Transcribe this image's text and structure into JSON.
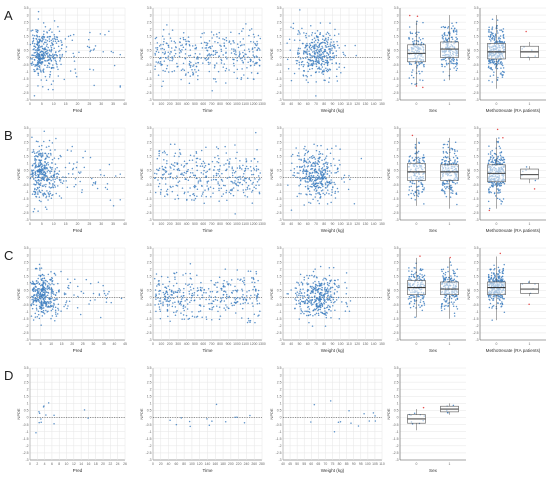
{
  "figure": {
    "row_labels": [
      "A",
      "B",
      "C",
      "D"
    ],
    "y_label": "NPDE",
    "colors": {
      "point": "#3f7fbf",
      "grid": "#e6e6e6",
      "axis": "#555555",
      "outlier": "#e03030",
      "box_edge": "#555555"
    }
  },
  "chart_data": [
    {
      "row": "A",
      "type": "scatter",
      "xlabel": "Pred",
      "x_ticks": [
        "0",
        "5",
        "10",
        "15",
        "20",
        "25",
        "30",
        "35",
        "40"
      ],
      "xlim": [
        0,
        40
      ],
      "y_ticks": [
        "-3",
        "-2.5",
        "-2",
        "-1.5",
        "-1",
        "-0.5",
        "0",
        "0.5",
        "1",
        "1.5",
        "2",
        "2.5",
        "3",
        "3.5"
      ],
      "ylim": [
        -3,
        3.5
      ],
      "ref_line": 0,
      "points": {
        "n": 380,
        "x_dist": "right-skew",
        "x_center": 6,
        "x_spread": 6,
        "y_spread": 0.9,
        "y_center": 0.3,
        "x_min": 0,
        "x_max": 38
      }
    },
    {
      "row": "A",
      "type": "scatter",
      "xlabel": "Time",
      "x_ticks": [
        "0",
        "100",
        "200",
        "300",
        "400",
        "500",
        "600",
        "700",
        "800",
        "900",
        "1000",
        "1100",
        "1200",
        "1300"
      ],
      "xlim": [
        0,
        1300
      ],
      "y_ticks": [
        "-3",
        "-2.5",
        "-2",
        "-1.5",
        "-1",
        "-0.5",
        "0",
        "0.5",
        "1",
        "1.5",
        "2",
        "2.5",
        "3",
        "3.5"
      ],
      "ylim": [
        -3,
        3.5
      ],
      "ref_line": 0,
      "points": {
        "n": 360,
        "x_dist": "uniform",
        "x_min": 20,
        "x_max": 1280,
        "y_spread": 0.9,
        "y_center": 0.2
      }
    },
    {
      "row": "A",
      "type": "scatter",
      "xlabel": "Weight (kg)",
      "x_ticks": [
        "30",
        "40",
        "50",
        "60",
        "70",
        "80",
        "90",
        "100",
        "110",
        "120",
        "130",
        "140",
        "150"
      ],
      "xlim": [
        30,
        150
      ],
      "y_ticks": [
        "-3",
        "-2.5",
        "-2",
        "-1.5",
        "-1",
        "-0.5",
        "0",
        "0.5",
        "1",
        "1.5",
        "2",
        "2.5",
        "3",
        "3.5"
      ],
      "ylim": [
        -3,
        3.5
      ],
      "ref_line": 0,
      "points": {
        "n": 360,
        "x_dist": "normal",
        "x_center": 72,
        "x_spread": 14,
        "x_min": 35,
        "x_max": 145,
        "y_spread": 0.9,
        "y_center": 0.2
      }
    },
    {
      "row": "A",
      "type": "box",
      "xlabel": "Sex",
      "categories": [
        "0",
        "1"
      ],
      "y_ticks": [
        "-3",
        "-2.5",
        "-2",
        "-1.5",
        "-1",
        "-0.5",
        "0",
        "0.5",
        "1",
        "1.5",
        "2",
        "2.5",
        "3",
        "3.5"
      ],
      "ylim": [
        -3,
        3.5
      ],
      "boxes": [
        {
          "q1": -0.3,
          "median": 0.3,
          "q3": 0.9,
          "low": -2.0,
          "high": 2.6,
          "n": 150
        },
        {
          "q1": 0.0,
          "median": 0.6,
          "q3": 1.1,
          "low": -1.6,
          "high": 3.0,
          "n": 190
        }
      ]
    },
    {
      "row": "A",
      "type": "box",
      "xlabel": "Methotrexate (RA patients)",
      "categories": [
        "0",
        "1"
      ],
      "y_ticks": [
        "-3",
        "-2.5",
        "-2",
        "-1.5",
        "-1",
        "-0.5",
        "0",
        "0.5",
        "1",
        "1.5",
        "2",
        "2.5",
        "3",
        "3.5"
      ],
      "ylim": [
        -3,
        3.5
      ],
      "boxes": [
        {
          "q1": -0.1,
          "median": 0.4,
          "q3": 1.0,
          "low": -2.2,
          "high": 3.0,
          "n": 280
        },
        {
          "q1": 0.0,
          "median": 0.4,
          "q3": 0.8,
          "low": -0.2,
          "high": 1.1,
          "n": 6
        }
      ]
    },
    {
      "row": "B",
      "type": "scatter",
      "xlabel": "Pred",
      "x_ticks": [
        "0",
        "5",
        "10",
        "15",
        "20",
        "25",
        "30",
        "35",
        "40"
      ],
      "xlim": [
        0,
        40
      ],
      "y_ticks": [
        "-3",
        "-2.5",
        "-2",
        "-1.5",
        "-1",
        "-0.5",
        "0",
        "0.5",
        "1",
        "1.5",
        "2",
        "2.5",
        "3",
        "3.5"
      ],
      "ylim": [
        -3,
        3.5
      ],
      "ref_line": 0,
      "points": {
        "n": 380,
        "x_dist": "right-skew",
        "x_center": 6,
        "x_spread": 6,
        "y_spread": 0.9,
        "y_center": 0.3,
        "x_min": 0,
        "x_max": 38
      }
    },
    {
      "row": "B",
      "type": "scatter",
      "xlabel": "Time",
      "x_ticks": [
        "0",
        "100",
        "200",
        "300",
        "400",
        "500",
        "600",
        "700",
        "800",
        "900",
        "1000",
        "1100",
        "1200",
        "1300"
      ],
      "xlim": [
        0,
        1300
      ],
      "y_ticks": [
        "-3",
        "-2.5",
        "-2",
        "-1.5",
        "-1",
        "-0.5",
        "0",
        "0.5",
        "1",
        "1.5",
        "2",
        "2.5",
        "3",
        "3.5"
      ],
      "ylim": [
        -3,
        3.5
      ],
      "ref_line": 0,
      "points": {
        "n": 360,
        "x_dist": "uniform",
        "x_min": 20,
        "x_max": 1280,
        "y_spread": 0.9,
        "y_center": 0.2
      }
    },
    {
      "row": "B",
      "type": "scatter",
      "xlabel": "Weight (kg)",
      "x_ticks": [
        "30",
        "40",
        "50",
        "60",
        "70",
        "80",
        "90",
        "100",
        "110",
        "120",
        "130",
        "140",
        "150"
      ],
      "xlim": [
        30,
        150
      ],
      "y_ticks": [
        "-3",
        "-2.5",
        "-2",
        "-1.5",
        "-1",
        "-0.5",
        "0",
        "0.5",
        "1",
        "1.5",
        "2",
        "2.5",
        "3",
        "3.5"
      ],
      "ylim": [
        -3,
        3.5
      ],
      "ref_line": 0,
      "points": {
        "n": 360,
        "x_dist": "normal",
        "x_center": 72,
        "x_spread": 14,
        "x_min": 35,
        "x_max": 145,
        "y_spread": 0.9,
        "y_center": 0.2
      }
    },
    {
      "row": "B",
      "type": "box",
      "xlabel": "Sex",
      "categories": [
        "0",
        "1"
      ],
      "y_ticks": [
        "-3",
        "-2.5",
        "-2",
        "-1.5",
        "-1",
        "-0.5",
        "0",
        "0.5",
        "1",
        "1.5",
        "2",
        "2.5",
        "3",
        "3.5"
      ],
      "ylim": [
        -3,
        3.5
      ],
      "boxes": [
        {
          "q1": -0.2,
          "median": 0.4,
          "q3": 1.0,
          "low": -2.0,
          "high": 2.8,
          "n": 150
        },
        {
          "q1": -0.2,
          "median": 0.4,
          "q3": 0.9,
          "low": -2.2,
          "high": 2.8,
          "n": 190
        }
      ]
    },
    {
      "row": "B",
      "type": "box",
      "xlabel": "Methotrexate (RA patients)",
      "categories": [
        "0",
        "1"
      ],
      "y_ticks": [
        "-3",
        "-2.5",
        "-2",
        "-1.5",
        "-1",
        "-0.5",
        "0",
        "0.5",
        "1",
        "1.5",
        "2",
        "2.5",
        "3",
        "3.5"
      ],
      "ylim": [
        -3,
        3.5
      ],
      "boxes": [
        {
          "q1": -0.3,
          "median": 0.3,
          "q3": 0.9,
          "low": -2.2,
          "high": 2.8,
          "n": 280
        },
        {
          "q1": -0.1,
          "median": 0.2,
          "q3": 0.6,
          "low": -0.4,
          "high": 0.8,
          "n": 6
        }
      ]
    },
    {
      "row": "C",
      "type": "scatter",
      "xlabel": "Pred",
      "x_ticks": [
        "0",
        "5",
        "10",
        "15",
        "20",
        "25",
        "30",
        "35",
        "40",
        "45"
      ],
      "xlim": [
        0,
        45
      ],
      "y_ticks": [
        "-3",
        "-2.5",
        "-2",
        "-1.5",
        "-1",
        "-0.5",
        "0",
        "0.5",
        "1",
        "1.5",
        "2",
        "2.5",
        "3",
        "3.5"
      ],
      "ylim": [
        -3,
        3.5
      ],
      "ref_line": 0,
      "points": {
        "n": 380,
        "x_dist": "right-skew",
        "x_center": 7,
        "x_spread": 6,
        "y_spread": 0.8,
        "y_center": 0.1,
        "x_min": 0,
        "x_max": 44
      }
    },
    {
      "row": "C",
      "type": "scatter",
      "xlabel": "Time",
      "x_ticks": [
        "0",
        "100",
        "200",
        "300",
        "400",
        "500",
        "600",
        "700",
        "800",
        "900",
        "1000",
        "1100",
        "1200",
        "1300"
      ],
      "xlim": [
        0,
        1300
      ],
      "y_ticks": [
        "-3",
        "-2.5",
        "-2",
        "-1.5",
        "-1",
        "-0.5",
        "0",
        "0.5",
        "1",
        "1.5",
        "2",
        "2.5",
        "3",
        "3.5"
      ],
      "ylim": [
        -3,
        3.5
      ],
      "ref_line": 0,
      "points": {
        "n": 360,
        "x_dist": "uniform",
        "x_min": 20,
        "x_max": 1280,
        "y_spread": 0.8,
        "y_center": 0.1
      }
    },
    {
      "row": "C",
      "type": "scatter",
      "xlabel": "Weight (kg)",
      "x_ticks": [
        "30",
        "40",
        "50",
        "60",
        "70",
        "80",
        "90",
        "100",
        "110",
        "120",
        "130",
        "140",
        "150"
      ],
      "xlim": [
        30,
        150
      ],
      "y_ticks": [
        "-3",
        "-2.5",
        "-2",
        "-1.5",
        "-1",
        "-0.5",
        "0",
        "0.5",
        "1",
        "1.5",
        "2",
        "2.5",
        "3",
        "3.5"
      ],
      "ylim": [
        -3,
        3.5
      ],
      "ref_line": 0,
      "points": {
        "n": 360,
        "x_dist": "normal",
        "x_center": 72,
        "x_spread": 14,
        "x_min": 35,
        "x_max": 145,
        "y_spread": 0.8,
        "y_center": 0.1
      }
    },
    {
      "row": "C",
      "type": "box",
      "xlabel": "Sex",
      "categories": [
        "0",
        "1"
      ],
      "y_ticks": [
        "-3",
        "-2.5",
        "-2",
        "-1.5",
        "-1",
        "-0.5",
        "0",
        "0.5",
        "1",
        "1.5",
        "2",
        "2.5",
        "3",
        "3.5"
      ],
      "ylim": [
        -3,
        3.5
      ],
      "boxes": [
        {
          "q1": 0.2,
          "median": 0.7,
          "q3": 1.2,
          "low": -1.4,
          "high": 2.8,
          "n": 150
        },
        {
          "q1": 0.2,
          "median": 0.6,
          "q3": 1.1,
          "low": -1.5,
          "high": 2.8,
          "n": 190
        }
      ]
    },
    {
      "row": "C",
      "type": "box",
      "xlabel": "Methotrexate (RA patients)",
      "categories": [
        "0",
        "1"
      ],
      "y_ticks": [
        "-3",
        "-2.5",
        "-2",
        "-1.5",
        "-1",
        "-0.5",
        "0",
        "0.5",
        "1",
        "1.5",
        "2",
        "2.5",
        "3",
        "3.5"
      ],
      "ylim": [
        -3,
        3.5
      ],
      "boxes": [
        {
          "q1": 0.2,
          "median": 0.7,
          "q3": 1.1,
          "low": -1.6,
          "high": 2.9,
          "n": 280
        },
        {
          "q1": 0.3,
          "median": 0.6,
          "q3": 1.0,
          "low": 0.1,
          "high": 1.2,
          "n": 6
        }
      ]
    },
    {
      "row": "D",
      "type": "scatter",
      "xlabel": "Pred",
      "x_ticks": [
        "0",
        "2",
        "4",
        "6",
        "8",
        "10",
        "12",
        "14",
        "16",
        "18",
        "20",
        "22",
        "24",
        "26"
      ],
      "xlim": [
        0,
        26
      ],
      "y_ticks": [
        "-3",
        "-2.5",
        "-2",
        "-1.5",
        "-1",
        "-0.5",
        "0",
        "0.5",
        "1",
        "1.5",
        "2",
        "2.5",
        "3",
        "3.5"
      ],
      "ylim": [
        -3,
        3.5
      ],
      "ref_line": 0,
      "points": {
        "n": 14,
        "x_dist": "right-skew",
        "x_center": 3,
        "x_spread": 3,
        "y_spread": 0.6,
        "y_center": 0.1,
        "x_min": 1,
        "x_max": 25
      }
    },
    {
      "row": "D",
      "type": "scatter",
      "xlabel": "Time",
      "x_ticks": [
        "0",
        "20",
        "40",
        "60",
        "80",
        "100",
        "120",
        "140",
        "160",
        "180",
        "200",
        "220",
        "240",
        "260",
        "280"
      ],
      "xlim": [
        0,
        280
      ],
      "y_ticks": [
        "-3",
        "-2.5",
        "-2",
        "-1.5",
        "-1",
        "-0.5",
        "0",
        "0.5",
        "1",
        "1.5",
        "2",
        "2.5",
        "3",
        "3.5"
      ],
      "ylim": [
        -3,
        3.5
      ],
      "ref_line": 0,
      "points": {
        "n": 14,
        "x_dist": "uniform",
        "x_min": 10,
        "x_max": 270,
        "y_spread": 0.6,
        "y_center": 0.1
      }
    },
    {
      "row": "D",
      "type": "scatter",
      "xlabel": "Weight (kg)",
      "x_ticks": [
        "40",
        "45",
        "50",
        "55",
        "60",
        "65",
        "70",
        "75",
        "80",
        "85",
        "90",
        "95",
        "100",
        "105",
        "110"
      ],
      "xlim": [
        40,
        110
      ],
      "y_ticks": [
        "-3",
        "-2.5",
        "-2",
        "-1.5",
        "-1",
        "-0.5",
        "0",
        "0.5",
        "1",
        "1.5",
        "2",
        "2.5",
        "3",
        "3.5"
      ],
      "ylim": [
        -3,
        3.5
      ],
      "ref_line": 0,
      "points": {
        "n": 14,
        "x_dist": "uniform",
        "x_min": 45,
        "x_max": 108,
        "y_spread": 0.6,
        "y_center": 0.1
      }
    },
    {
      "row": "D",
      "type": "box",
      "xlabel": "Sex",
      "categories": [
        "0",
        "1"
      ],
      "y_ticks": [
        "-3",
        "-2.5",
        "-2",
        "-1.5",
        "-1",
        "-0.5",
        "0",
        "0.5",
        "1",
        "1.5",
        "2",
        "2.5",
        "3",
        "3.5"
      ],
      "ylim": [
        -3,
        3.5
      ],
      "boxes": [
        {
          "q1": -0.4,
          "median": -0.1,
          "q3": 0.2,
          "low": -0.9,
          "high": 0.6,
          "n": 10
        },
        {
          "q1": 0.4,
          "median": 0.6,
          "q3": 0.8,
          "low": 0.2,
          "high": 1.0,
          "n": 5
        }
      ]
    }
  ]
}
